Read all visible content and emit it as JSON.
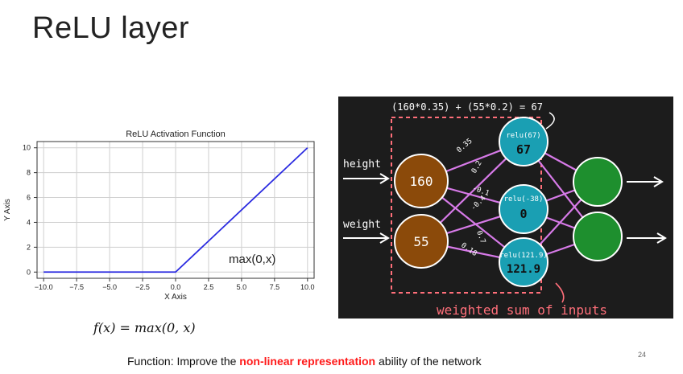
{
  "slide": {
    "title": "ReLU layer",
    "page_number": "24",
    "formula": "f(x) = max(0, x)",
    "caption": {
      "prefix": "Function: Improve the ",
      "highlight": "non-linear representation",
      "suffix": " ability of the network"
    },
    "colors": {
      "highlight": "#ff1a1a",
      "line": "#2a2ae0"
    }
  },
  "chart_data": {
    "type": "line",
    "title": "ReLU Activation Function",
    "xlabel": "X Axis",
    "ylabel": "Y Axis",
    "xlim": [
      -10.5,
      10.5
    ],
    "ylim": [
      -0.5,
      10.5
    ],
    "x_ticks": [
      "-10.0",
      "-7.5",
      "-5.0",
      "-2.5",
      "0.0",
      "2.5",
      "5.0",
      "7.5",
      "10.0"
    ],
    "y_ticks": [
      "0",
      "2",
      "4",
      "6",
      "8",
      "10"
    ],
    "grid": true,
    "annotation": "max(0,x)",
    "series": [
      {
        "x": [
          -10,
          0,
          10
        ],
        "y": [
          0,
          0,
          10
        ]
      }
    ]
  },
  "network": {
    "equation": "(160*0.35) + (55*0.2) = 67",
    "inputs": [
      {
        "label": "height",
        "value": "160"
      },
      {
        "label": "weight",
        "value": "55"
      }
    ],
    "hidden": [
      {
        "relu": "relu(67)",
        "value": "67"
      },
      {
        "relu": "relu(-38)",
        "value": "0"
      },
      {
        "relu": "relu(121.9)",
        "value": "121.9"
      }
    ],
    "weights": [
      "0.35",
      "0.2",
      "-0.1",
      "-0.4",
      "0.7",
      "0.18"
    ],
    "footer": "weighted sum of inputs",
    "colors": {
      "background": "#1c1c1c",
      "input_node": "#8b4a0a",
      "hidden_node": "#1a9fb3",
      "output_node": "#1e8f2e",
      "edges": "#d77ae8",
      "box": "#ff6f7a"
    }
  }
}
